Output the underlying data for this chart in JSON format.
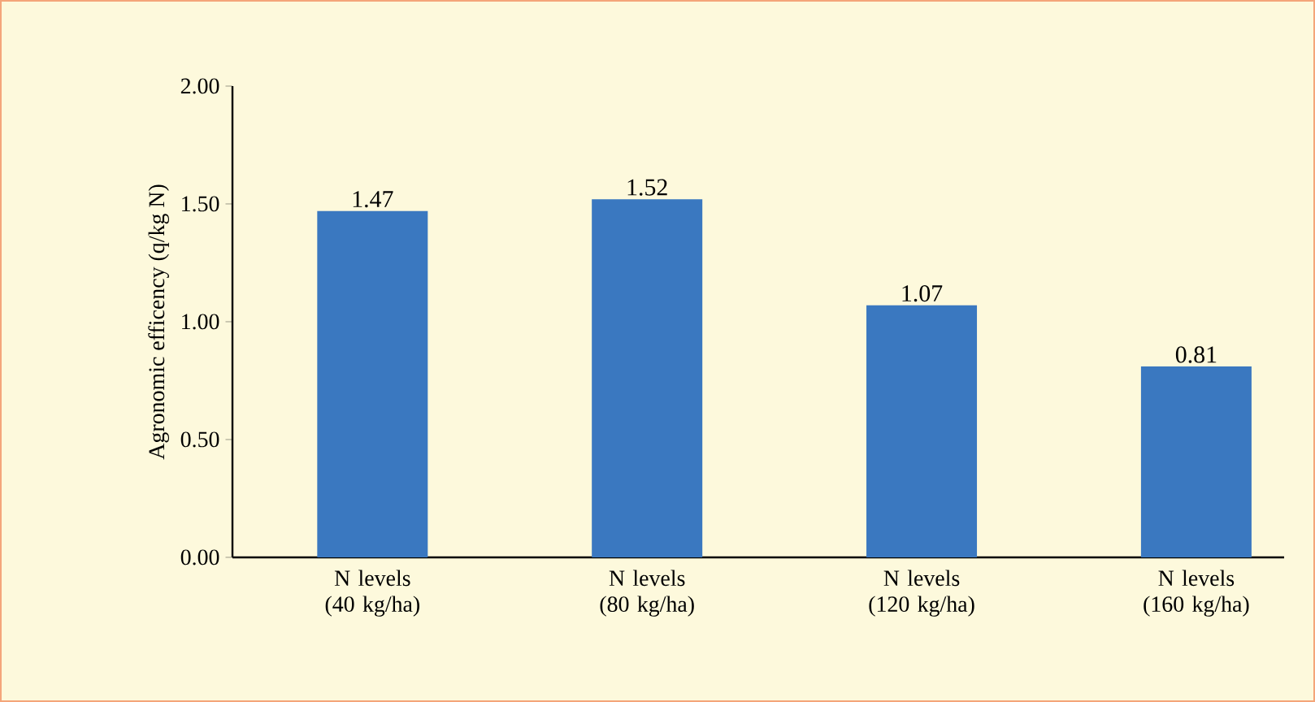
{
  "chart_data": {
    "type": "bar",
    "ylabel": "Agronomic efficency (q/kg N)",
    "categories": [
      "N levels (40 kg/ha)",
      "N levels (80 kg/ha)",
      "N levels (120 kg/ha)",
      "N levels (160 kg/ha)"
    ],
    "values": [
      1.47,
      1.52,
      1.07,
      0.81
    ],
    "value_labels": [
      "1.47",
      "1.52",
      "1.07",
      "0.81"
    ],
    "color": "#3a78c0",
    "ylim": [
      0,
      2
    ],
    "yticks": [
      {
        "value": 0,
        "label": "0.00"
      },
      {
        "value": 0.5,
        "label": "0.50"
      },
      {
        "value": 1,
        "label": "1.00"
      },
      {
        "value": 1.5,
        "label": "1.50"
      },
      {
        "value": 2,
        "label": "2.00"
      }
    ],
    "grid": false
  }
}
